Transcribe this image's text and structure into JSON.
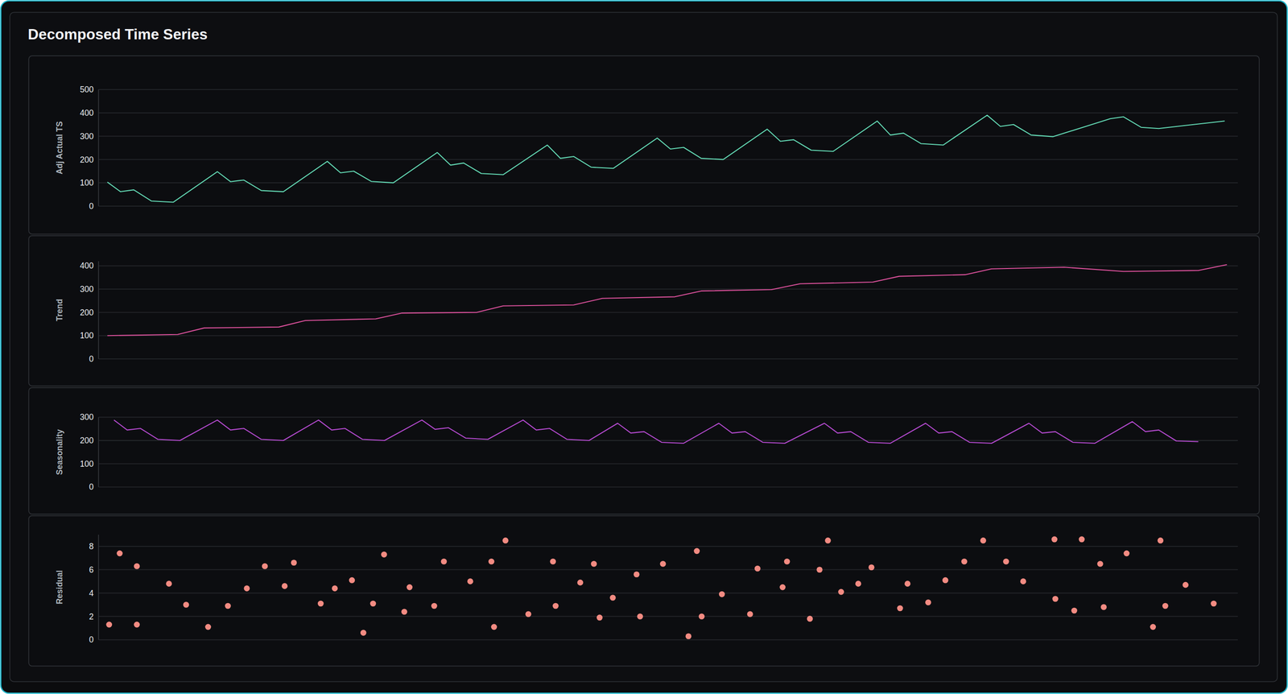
{
  "title": "Decomposed Time Series",
  "chart_data": [
    {
      "type": "line",
      "ylabel": "Adj Actual TS",
      "color": "#63d9b4",
      "grid": true,
      "tick_labels": "y",
      "xlim": [
        -2,
        257
      ],
      "ylim": [
        0,
        500
      ],
      "yticks": [
        0,
        100,
        200,
        300,
        400,
        500
      ],
      "x": [
        0,
        3,
        6,
        10,
        15,
        25,
        28,
        31,
        35,
        40,
        50,
        53,
        56,
        60,
        65,
        75,
        78,
        81,
        85,
        90,
        100,
        103,
        106,
        110,
        115,
        125,
        128,
        131,
        135,
        140,
        150,
        153,
        156,
        160,
        165,
        175,
        178,
        181,
        185,
        190,
        200,
        203,
        206,
        210,
        215,
        228,
        231,
        235,
        239,
        254
      ],
      "values": [
        103,
        62,
        70,
        22,
        17,
        148,
        105,
        112,
        67,
        62,
        192,
        143,
        150,
        106,
        100,
        230,
        176,
        185,
        140,
        135,
        262,
        205,
        213,
        167,
        162,
        292,
        245,
        252,
        205,
        200,
        330,
        278,
        285,
        240,
        235,
        365,
        305,
        313,
        268,
        262,
        390,
        342,
        350,
        305,
        298,
        375,
        383,
        338,
        333,
        365
      ]
    },
    {
      "type": "line",
      "ylabel": "Trend",
      "color": "#d9509a",
      "grid": true,
      "tick_labels": "y",
      "xlim": [
        -2,
        257
      ],
      "ylim": [
        0,
        420
      ],
      "yticks": [
        0,
        100,
        200,
        300,
        400
      ],
      "x": [
        0,
        16,
        22,
        39,
        45,
        61,
        67,
        84,
        90,
        106,
        112.5,
        129,
        135,
        151,
        157.5,
        174,
        180,
        195,
        201,
        217.5,
        231,
        248,
        254.5
      ],
      "values": [
        100,
        105,
        133,
        137,
        165,
        172,
        197,
        200,
        228,
        232,
        260,
        267,
        292,
        298,
        323,
        330,
        355,
        362,
        387,
        394,
        376,
        380,
        405
      ]
    },
    {
      "type": "line",
      "ylabel": "Seasonality",
      "color": "#b54ad0",
      "grid": true,
      "tick_labels": "y",
      "xlim": [
        -2,
        257
      ],
      "ylim": [
        0,
        300
      ],
      "yticks": [
        0,
        100,
        200,
        300
      ],
      "x": [
        1.5,
        4.5,
        7.5,
        11.5,
        16.5,
        25,
        28,
        31,
        35,
        40,
        48,
        51,
        54,
        58,
        63,
        71.5,
        74.5,
        77.5,
        81.5,
        86.5,
        94.5,
        97.5,
        100.5,
        104.5,
        109.5,
        116,
        119,
        122,
        126,
        131,
        139,
        142,
        145,
        149,
        154,
        163,
        166,
        169,
        173,
        178,
        186,
        189,
        192,
        196,
        201,
        209.5,
        212.5,
        215.5,
        219.5,
        224.5,
        233,
        236,
        239,
        243,
        248
      ],
      "values": [
        288,
        245,
        252,
        205,
        200,
        288,
        245,
        252,
        205,
        200,
        288,
        245,
        252,
        205,
        200,
        288,
        248,
        255,
        210,
        205,
        288,
        245,
        252,
        205,
        200,
        274,
        232,
        238,
        192,
        188,
        274,
        232,
        238,
        192,
        188,
        274,
        232,
        238,
        192,
        188,
        274,
        232,
        238,
        192,
        188,
        274,
        232,
        238,
        192,
        188,
        281,
        238,
        245,
        198,
        195
      ]
    },
    {
      "type": "scatter",
      "ylabel": "Residual",
      "color": "#f28b82",
      "marker": "circle",
      "grid": true,
      "tick_labels": "y",
      "xlim": [
        -2,
        257
      ],
      "ylim": [
        0,
        9
      ],
      "yticks": [
        0,
        2,
        4,
        6,
        8
      ],
      "x": [
        0.4,
        2.8,
        6.7,
        6.7,
        14,
        17.9,
        22.9,
        27.4,
        31.7,
        35.8,
        40.3,
        42.4,
        48.5,
        51.7,
        55.6,
        58.2,
        60.4,
        62.9,
        67.5,
        68.7,
        74.3,
        76.5,
        82.5,
        87.3,
        87.9,
        90.5,
        95.7,
        101.3,
        101.9,
        107.5,
        110.6,
        111.9,
        114.9,
        120.3,
        121.1,
        126.3,
        132.1,
        134,
        135.1,
        139.7,
        146.1,
        147.8,
        153.5,
        154.5,
        159.7,
        161.9,
        163.8,
        166.8,
        170.7,
        173.7,
        180.2,
        181.9,
        186.6,
        190.5,
        194.8,
        199.1,
        204.3,
        208.2,
        215.3,
        215.5,
        219.8,
        221.5,
        225.7,
        226.5,
        231.7,
        237.7,
        239.4,
        240.5,
        245.1,
        251.5
      ],
      "values": [
        1.3,
        7.4,
        6.3,
        1.3,
        4.8,
        3,
        1.1,
        2.9,
        4.4,
        6.3,
        4.6,
        6.6,
        3.1,
        4.4,
        5.1,
        0.6,
        3.1,
        7.3,
        2.4,
        4.5,
        2.9,
        6.7,
        5,
        6.7,
        1.1,
        8.5,
        2.2,
        6.7,
        2.9,
        4.9,
        6.5,
        1.9,
        3.6,
        5.6,
        2,
        6.5,
        0.3,
        7.6,
        2,
        3.9,
        2.2,
        6.1,
        4.5,
        6.7,
        1.8,
        6,
        8.5,
        4.1,
        4.8,
        6.2,
        2.7,
        4.8,
        3.2,
        5.1,
        6.7,
        8.5,
        6.7,
        5,
        8.6,
        3.5,
        2.5,
        8.6,
        6.5,
        2.8,
        7.4,
        1.1,
        8.5,
        2.9,
        4.7,
        3.1
      ]
    }
  ]
}
